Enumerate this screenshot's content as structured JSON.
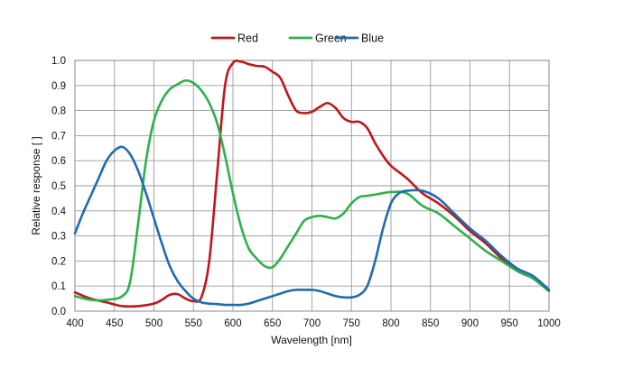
{
  "chart_data": {
    "type": "line",
    "xlabel": "Wavelength [nm]",
    "ylabel": "Relative response [ ]",
    "xlim": [
      400,
      1000
    ],
    "ylim": [
      0,
      1
    ],
    "xticks": [
      "400",
      "450",
      "500",
      "550",
      "600",
      "650",
      "700",
      "750",
      "800",
      "850",
      "900",
      "950",
      "1000"
    ],
    "yticks": [
      "0.0",
      "0.1",
      "0.2",
      "0.3",
      "0.4",
      "0.5",
      "0.6",
      "0.7",
      "0.8",
      "0.9",
      "1.0"
    ],
    "grid": true,
    "legend_position": "top-center",
    "series": [
      {
        "name": "Red",
        "color": "#c0161b",
        "x": [
          400,
          420,
          440,
          460,
          480,
          500,
          510,
          520,
          530,
          540,
          550,
          560,
          570,
          580,
          590,
          600,
          610,
          620,
          630,
          640,
          650,
          660,
          670,
          680,
          690,
          700,
          710,
          720,
          730,
          740,
          750,
          760,
          770,
          780,
          790,
          800,
          820,
          840,
          860,
          880,
          900,
          920,
          940,
          960,
          980,
          1000
        ],
        "y": [
          0.075,
          0.05,
          0.035,
          0.02,
          0.02,
          0.03,
          0.045,
          0.065,
          0.068,
          0.05,
          0.04,
          0.055,
          0.2,
          0.55,
          0.9,
          0.99,
          0.995,
          0.985,
          0.978,
          0.975,
          0.955,
          0.93,
          0.86,
          0.8,
          0.79,
          0.795,
          0.815,
          0.83,
          0.81,
          0.77,
          0.755,
          0.755,
          0.73,
          0.67,
          0.62,
          0.58,
          0.53,
          0.47,
          0.43,
          0.38,
          0.32,
          0.27,
          0.21,
          0.16,
          0.13,
          0.08
        ]
      },
      {
        "name": "Green",
        "color": "#2db14b",
        "x": [
          400,
          420,
          440,
          460,
          470,
          480,
          490,
          500,
          510,
          520,
          530,
          540,
          550,
          560,
          570,
          580,
          590,
          600,
          610,
          620,
          630,
          640,
          650,
          660,
          670,
          680,
          690,
          700,
          710,
          720,
          730,
          740,
          750,
          760,
          770,
          780,
          800,
          820,
          840,
          860,
          880,
          900,
          920,
          940,
          960,
          980,
          1000
        ],
        "y": [
          0.06,
          0.045,
          0.045,
          0.06,
          0.12,
          0.35,
          0.6,
          0.76,
          0.84,
          0.885,
          0.905,
          0.92,
          0.91,
          0.88,
          0.83,
          0.75,
          0.62,
          0.47,
          0.34,
          0.25,
          0.21,
          0.18,
          0.175,
          0.21,
          0.26,
          0.31,
          0.36,
          0.375,
          0.38,
          0.375,
          0.37,
          0.39,
          0.43,
          0.455,
          0.46,
          0.465,
          0.475,
          0.47,
          0.42,
          0.39,
          0.34,
          0.29,
          0.24,
          0.2,
          0.16,
          0.13,
          0.08
        ]
      },
      {
        "name": "Blue",
        "color": "#1f6cb0",
        "x": [
          400,
          410,
          420,
          430,
          440,
          450,
          460,
          470,
          480,
          490,
          500,
          510,
          520,
          530,
          540,
          550,
          560,
          570,
          580,
          590,
          600,
          610,
          620,
          630,
          640,
          650,
          660,
          670,
          680,
          690,
          700,
          710,
          720,
          730,
          740,
          750,
          760,
          770,
          780,
          790,
          800,
          810,
          820,
          840,
          860,
          880,
          900,
          920,
          940,
          960,
          980,
          1000
        ],
        "y": [
          0.31,
          0.39,
          0.46,
          0.53,
          0.6,
          0.64,
          0.655,
          0.625,
          0.56,
          0.47,
          0.37,
          0.27,
          0.18,
          0.12,
          0.08,
          0.05,
          0.035,
          0.03,
          0.028,
          0.025,
          0.025,
          0.025,
          0.03,
          0.04,
          0.05,
          0.06,
          0.07,
          0.08,
          0.085,
          0.085,
          0.085,
          0.08,
          0.07,
          0.06,
          0.055,
          0.055,
          0.065,
          0.1,
          0.2,
          0.33,
          0.43,
          0.47,
          0.48,
          0.48,
          0.45,
          0.39,
          0.33,
          0.28,
          0.22,
          0.17,
          0.14,
          0.085
        ]
      }
    ]
  }
}
